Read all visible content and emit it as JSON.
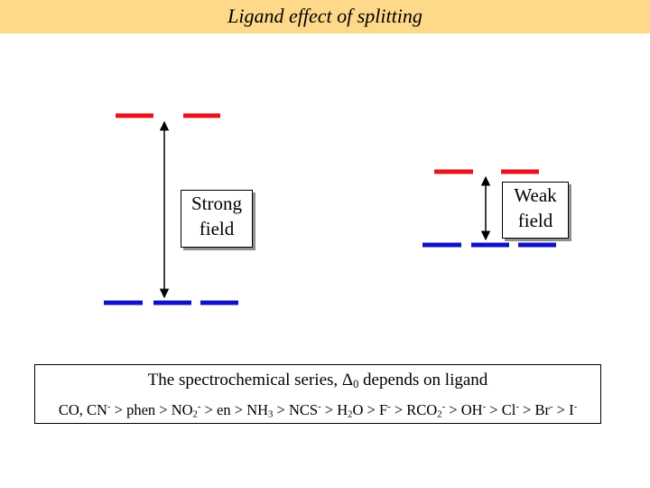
{
  "header": {
    "title": "Ligand effect of splitting"
  },
  "colors": {
    "title_bar": "#ffd98a",
    "upper_level": "#e8141c",
    "lower_level": "#1010c8"
  },
  "strong_field": {
    "label_line1": "Strong",
    "label_line2": "field"
  },
  "weak_field": {
    "label_line1": "Weak",
    "label_line2": "field"
  },
  "series": {
    "title_prefix": "The spectrochemical series, ",
    "title_delta": "Δ",
    "title_delta_sub": "0",
    "title_suffix": " depends on ligand",
    "ligands": [
      {
        "parts": [
          {
            "t": "CO, CN"
          },
          {
            "sup": "-"
          }
        ]
      },
      {
        "parts": [
          {
            "t": "phen"
          }
        ]
      },
      {
        "parts": [
          {
            "t": "NO"
          },
          {
            "sub": "2"
          },
          {
            "sup": "-"
          }
        ]
      },
      {
        "parts": [
          {
            "t": "en"
          }
        ]
      },
      {
        "parts": [
          {
            "t": "NH"
          },
          {
            "sub": "3"
          }
        ]
      },
      {
        "parts": [
          {
            "t": "NCS"
          },
          {
            "sup": "-"
          }
        ]
      },
      {
        "parts": [
          {
            "t": "H"
          },
          {
            "sub": "2"
          },
          {
            "t": "O"
          }
        ]
      },
      {
        "parts": [
          {
            "t": "F"
          },
          {
            "sup": "-"
          }
        ]
      },
      {
        "parts": [
          {
            "t": "RCO"
          },
          {
            "sub": "2"
          },
          {
            "sup": "-"
          }
        ]
      },
      {
        "parts": [
          {
            "t": "OH"
          },
          {
            "sup": "-"
          }
        ]
      },
      {
        "parts": [
          {
            "t": "Cl"
          },
          {
            "sup": "-"
          }
        ]
      },
      {
        "parts": [
          {
            "t": "Br"
          },
          {
            "sup": "-"
          }
        ]
      },
      {
        "parts": [
          {
            "t": "I"
          },
          {
            "sup": "-"
          }
        ]
      }
    ],
    "separator": " > "
  }
}
